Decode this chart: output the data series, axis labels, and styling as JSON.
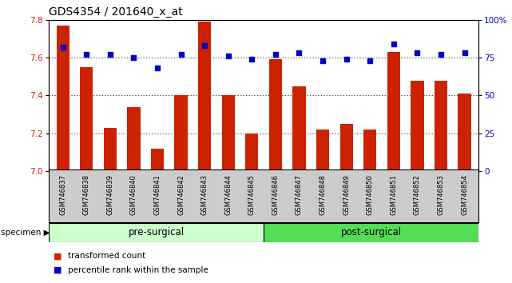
{
  "title": "GDS4354 / 201640_x_at",
  "samples": [
    "GSM746837",
    "GSM746838",
    "GSM746839",
    "GSM746840",
    "GSM746841",
    "GSM746842",
    "GSM746843",
    "GSM746844",
    "GSM746845",
    "GSM746846",
    "GSM746847",
    "GSM746848",
    "GSM746849",
    "GSM746850",
    "GSM746851",
    "GSM746852",
    "GSM746853",
    "GSM746854"
  ],
  "bar_values": [
    7.77,
    7.55,
    7.23,
    7.34,
    7.12,
    7.4,
    7.79,
    7.4,
    7.2,
    7.59,
    7.45,
    7.22,
    7.25,
    7.22,
    7.63,
    7.48,
    7.48,
    7.41
  ],
  "dot_values": [
    82,
    77,
    77,
    75,
    68,
    77,
    83,
    76,
    74,
    77,
    78,
    73,
    74,
    73,
    84,
    78,
    77,
    78
  ],
  "pre_surgical_count": 9,
  "post_surgical_count": 9,
  "ylim_left": [
    7.0,
    7.8
  ],
  "ylim_right": [
    0,
    100
  ],
  "yticks_left": [
    7.0,
    7.2,
    7.4,
    7.6,
    7.8
  ],
  "yticks_right": [
    0,
    25,
    50,
    75,
    100
  ],
  "ytick_labels_right": [
    "0",
    "25",
    "50",
    "75",
    "100%"
  ],
  "bar_color": "#cc2200",
  "dot_color": "#0000cc",
  "pre_color": "#ccffcc",
  "post_color": "#55dd55",
  "xtick_bg": "#cccccc",
  "grid_color": "#000000",
  "bg_color": "#ffffff",
  "plot_bg": "#ffffff",
  "specimen_label": "specimen",
  "pre_label": "pre-surgical",
  "post_label": "post-surgical",
  "legend_bar_label": "transformed count",
  "legend_dot_label": "percentile rank within the sample",
  "title_fontsize": 10,
  "tick_fontsize": 7.5,
  "xtick_fontsize": 6.0,
  "label_fontsize": 8.5
}
